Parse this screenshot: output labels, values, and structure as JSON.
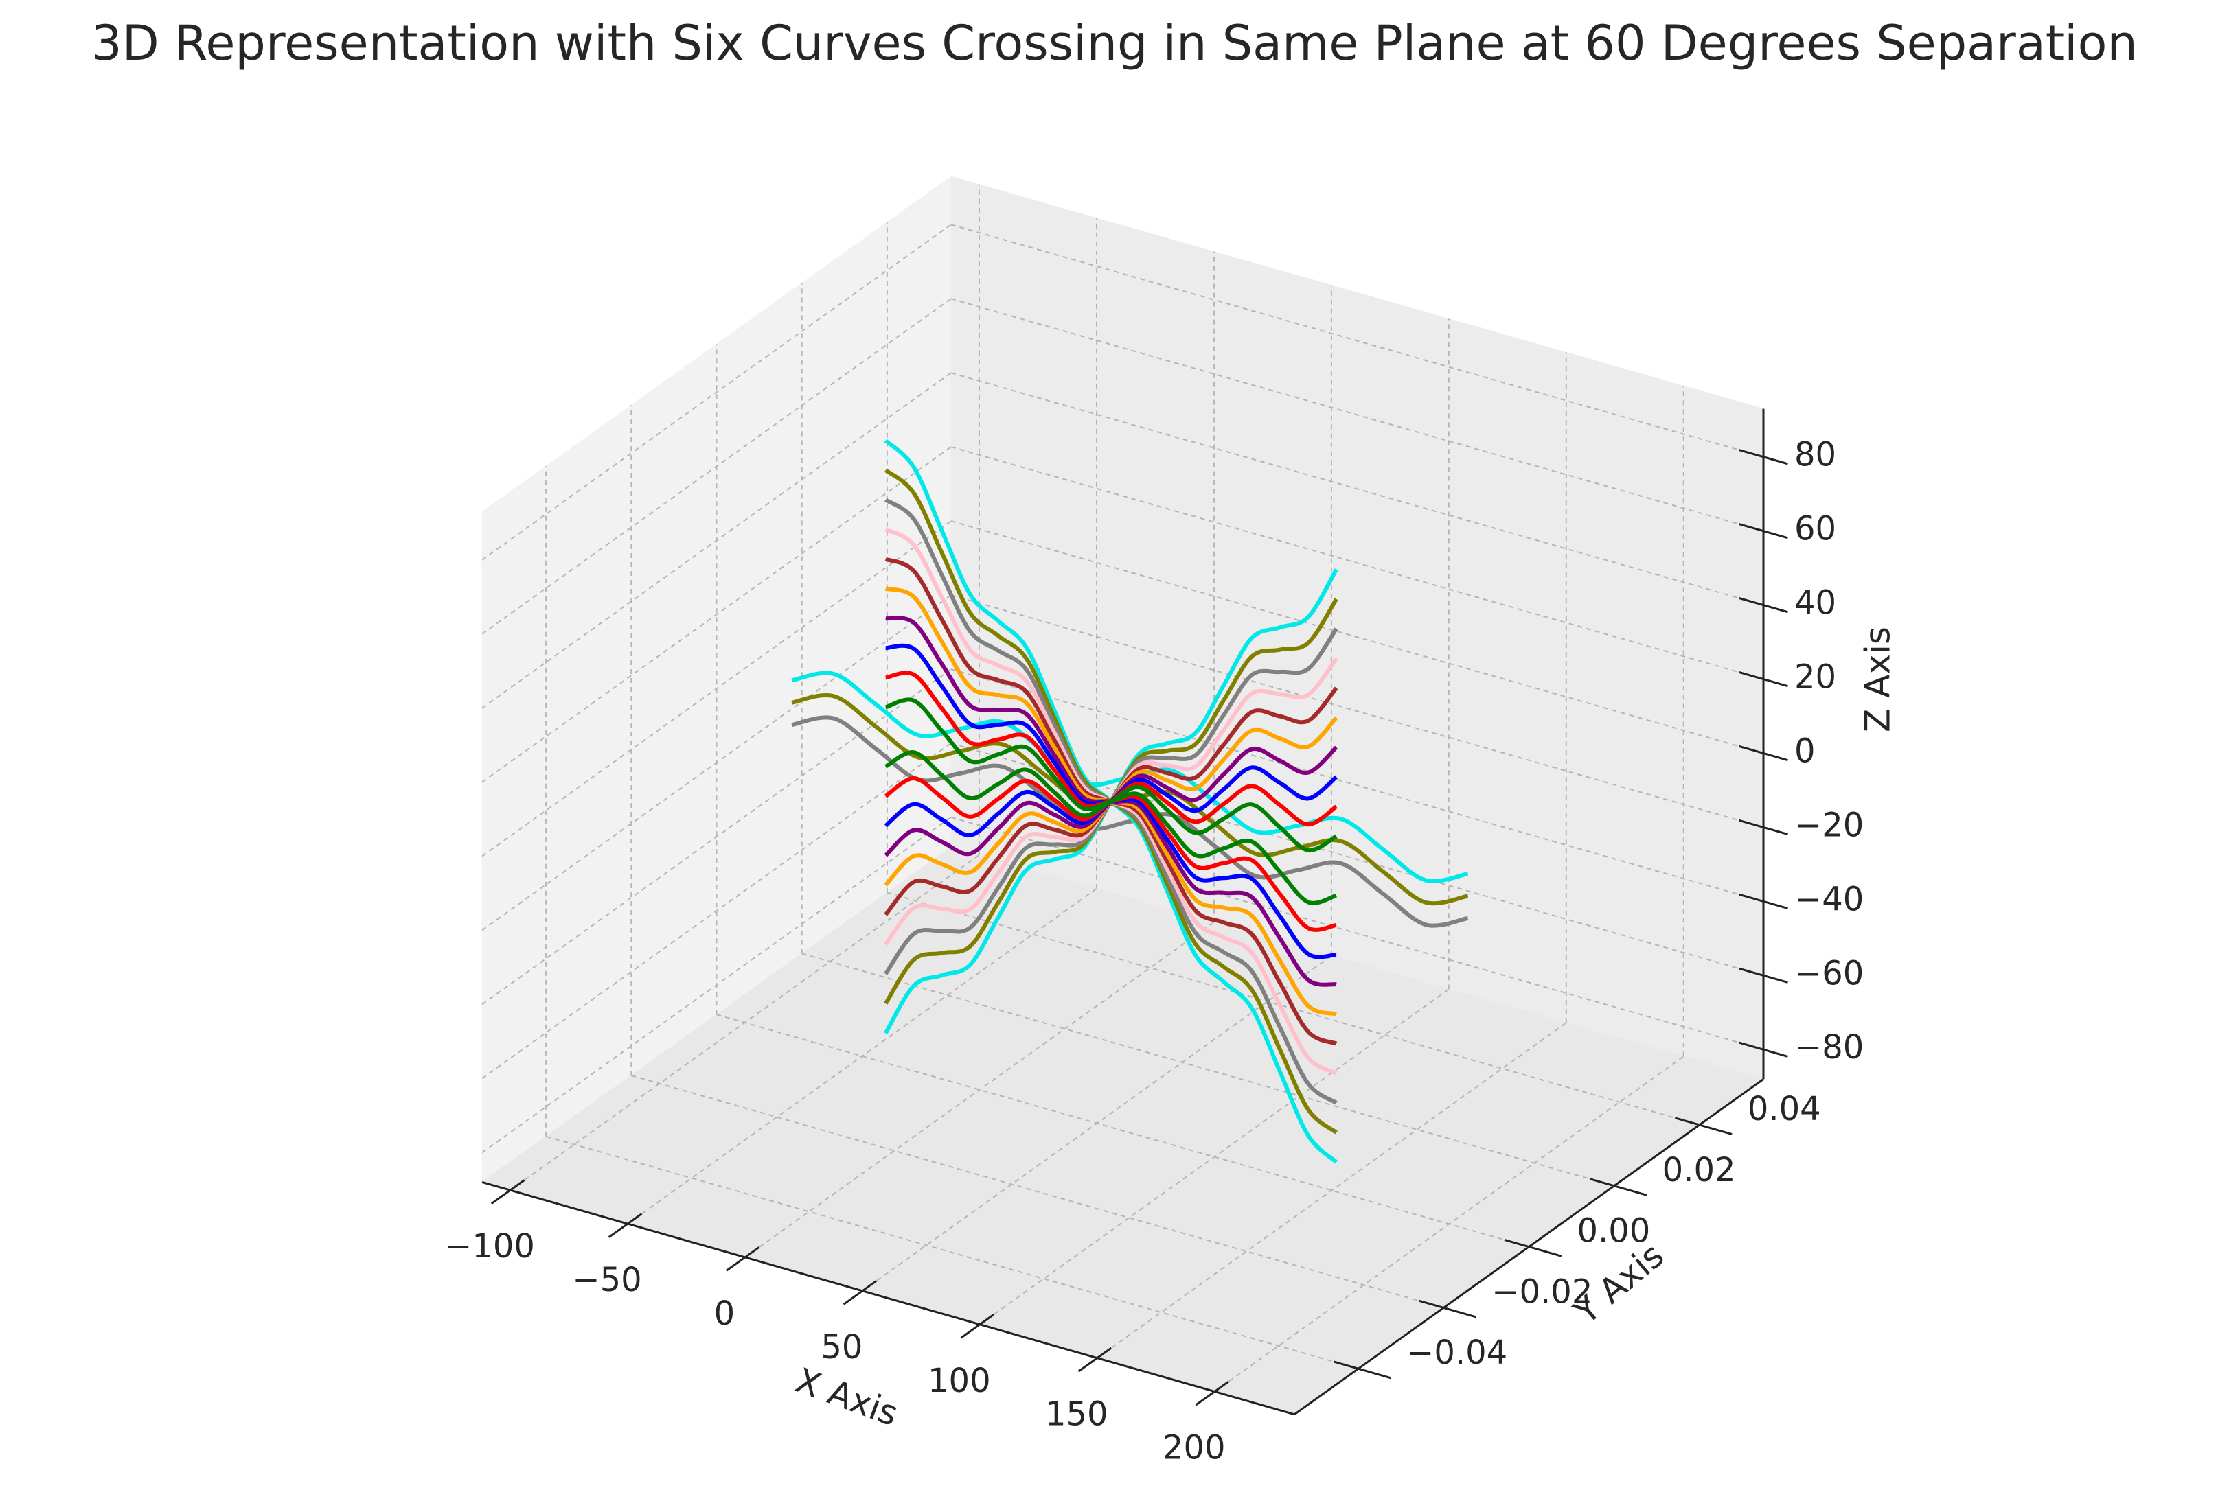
{
  "chart_data": {
    "type": "line3d",
    "title": "3D Representation with Six Curves Crossing in Same Plane at 60 Degrees Separation",
    "xlabel": "X Axis",
    "ylabel": "Y Axis",
    "zlabel": "Z Axis",
    "xlim": [
      -112,
      234
    ],
    "ylim": [
      -0.055,
      0.055
    ],
    "zlim": [
      -88,
      93
    ],
    "xticks": [
      {
        "value": -100,
        "label": "−100"
      },
      {
        "value": -50,
        "label": "−50"
      },
      0,
      50,
      100,
      150,
      200
    ],
    "yticks": [
      {
        "value": -0.04,
        "label": "−0.04"
      },
      {
        "value": -0.02,
        "label": "−0.02"
      },
      {
        "value": 0,
        "label": "0.00"
      },
      {
        "value": 0.02,
        "label": "0.02"
      },
      {
        "value": 0.04,
        "label": "0.04"
      }
    ],
    "zticks": [
      {
        "value": -80,
        "label": "−80"
      },
      {
        "value": -60,
        "label": "−60"
      },
      {
        "value": -40,
        "label": "−40"
      },
      {
        "value": -20,
        "label": "−20"
      },
      0,
      20,
      40,
      60,
      80
    ],
    "grid": true,
    "series": [
      {
        "color": "#00e8e8",
        "y": 0,
        "x": [
          -80,
          -62,
          -44,
          -26,
          -8,
          10,
          28,
          46,
          64,
          82,
          100,
          118,
          136,
          154,
          172,
          190,
          208
        ],
        "values": [
          8,
          13,
          8,
          3,
          8,
          13,
          8,
          3,
          8,
          13,
          8,
          3,
          8,
          13,
          8,
          3,
          8
        ]
      },
      {
        "color": "#808000",
        "y": 0,
        "x": [
          -80,
          -62,
          -44,
          -26,
          -8,
          10,
          28,
          46,
          64,
          82,
          100,
          118,
          136,
          154,
          172,
          190,
          208
        ],
        "values": [
          2,
          7,
          2,
          -3,
          2,
          7,
          2,
          -3,
          2,
          7,
          2,
          -3,
          2,
          7,
          2,
          -3,
          2
        ]
      },
      {
        "color": "#808080",
        "y": 0,
        "x": [
          -80,
          -62,
          -44,
          -26,
          -8,
          10,
          28,
          46,
          64,
          82,
          100,
          118,
          136,
          154,
          172,
          190,
          208
        ],
        "values": [
          -4,
          1,
          -4,
          -9,
          -4,
          1,
          -4,
          -9,
          -4,
          1,
          -4,
          -9,
          -4,
          1,
          -4,
          -9,
          -4
        ]
      },
      {
        "color": "#00e8e8",
        "y": 0,
        "x": [
          -40,
          -28,
          -16,
          -4,
          8,
          20,
          32,
          44,
          56,
          68,
          80,
          92,
          104,
          116,
          128,
          140,
          152
        ],
        "values": [
          80,
          75,
          60,
          45,
          40,
          35,
          20,
          5,
          0,
          -5,
          -20,
          -35,
          -40,
          -45,
          -60,
          -75,
          -80
        ]
      },
      {
        "color": "#00e8e8",
        "y": 0,
        "x": [
          -40,
          -28,
          -16,
          -4,
          8,
          20,
          32,
          44,
          56,
          68,
          80,
          92,
          104,
          116,
          128,
          140,
          152
        ],
        "values": [
          -80,
          -65,
          -60,
          -55,
          -40,
          -25,
          -20,
          -15,
          0,
          15,
          20,
          25,
          40,
          55,
          60,
          65,
          80
        ]
      },
      {
        "color": "#808000",
        "y": 0,
        "x": [
          -40,
          -28,
          -16,
          -4,
          8,
          20,
          32,
          44,
          56,
          68,
          80,
          92,
          104,
          116,
          128,
          140,
          152
        ],
        "values": [
          72,
          68,
          54,
          40,
          36,
          32,
          18,
          4,
          0,
          -4,
          -18,
          -32,
          -36,
          -40,
          -54,
          -68,
          -72
        ]
      },
      {
        "color": "#808000",
        "y": 0,
        "x": [
          -40,
          -28,
          -16,
          -4,
          8,
          20,
          32,
          44,
          56,
          68,
          80,
          92,
          104,
          116,
          128,
          140,
          152
        ],
        "values": [
          -72,
          -58,
          -54,
          -50,
          -36,
          -22,
          -18,
          -14,
          0,
          14,
          18,
          22,
          36,
          50,
          54,
          58,
          72
        ]
      },
      {
        "color": "#808080",
        "y": 0,
        "x": [
          -40,
          -28,
          -16,
          -4,
          8,
          20,
          32,
          44,
          56,
          68,
          80,
          92,
          104,
          116,
          128,
          140,
          152
        ],
        "values": [
          64,
          61,
          48,
          35,
          32,
          29,
          16,
          3,
          0,
          -3,
          -16,
          -29,
          -32,
          -35,
          -48,
          -61,
          -64
        ]
      },
      {
        "color": "#808080",
        "y": 0,
        "x": [
          -40,
          -28,
          -16,
          -4,
          8,
          20,
          32,
          44,
          56,
          68,
          80,
          92,
          104,
          116,
          128,
          140,
          152
        ],
        "values": [
          -64,
          -51,
          -48,
          -45,
          -32,
          -19,
          -16,
          -13,
          0,
          13,
          16,
          19,
          32,
          45,
          48,
          51,
          64
        ]
      },
      {
        "color": "#ffc0cb",
        "y": 0,
        "x": [
          -40,
          -28,
          -16,
          -4,
          8,
          20,
          32,
          44,
          56,
          68,
          80,
          92,
          104,
          116,
          128,
          140,
          152
        ],
        "values": [
          56,
          54,
          42,
          30,
          28,
          26,
          14,
          2,
          0,
          -2,
          -14,
          -26,
          -28,
          -30,
          -42,
          -54,
          -56
        ]
      },
      {
        "color": "#ffc0cb",
        "y": 0,
        "x": [
          -40,
          -28,
          -16,
          -4,
          8,
          20,
          32,
          44,
          56,
          68,
          80,
          92,
          104,
          116,
          128,
          140,
          152
        ],
        "values": [
          -56,
          -44,
          -42,
          -40,
          -28,
          -16,
          -14,
          -12,
          0,
          12,
          14,
          16,
          28,
          40,
          42,
          44,
          56
        ]
      },
      {
        "color": "#a52a2a",
        "y": 0,
        "x": [
          -40,
          -28,
          -16,
          -4,
          8,
          20,
          32,
          44,
          56,
          68,
          80,
          92,
          104,
          116,
          128,
          140,
          152
        ],
        "values": [
          48,
          47,
          36,
          25,
          24,
          23,
          12,
          1,
          0,
          -1,
          -12,
          -23,
          -24,
          -25,
          -36,
          -47,
          -48
        ]
      },
      {
        "color": "#a52a2a",
        "y": 0,
        "x": [
          -40,
          -28,
          -16,
          -4,
          8,
          20,
          32,
          44,
          56,
          68,
          80,
          92,
          104,
          116,
          128,
          140,
          152
        ],
        "values": [
          -48,
          -37,
          -36,
          -35,
          -24,
          -13,
          -12,
          -11,
          0,
          11,
          12,
          13,
          24,
          35,
          36,
          37,
          48
        ]
      },
      {
        "color": "#ffa500",
        "y": 0,
        "x": [
          -40,
          -28,
          -16,
          -4,
          8,
          20,
          32,
          44,
          56,
          68,
          80,
          92,
          104,
          116,
          128,
          140,
          152
        ],
        "values": [
          40,
          40,
          30,
          20,
          20,
          20,
          10,
          0,
          0,
          0,
          -10,
          -20,
          -20,
          -20,
          -30,
          -40,
          -40
        ]
      },
      {
        "color": "#ffa500",
        "y": 0,
        "x": [
          -40,
          -28,
          -16,
          -4,
          8,
          20,
          32,
          44,
          56,
          68,
          80,
          92,
          104,
          116,
          128,
          140,
          152
        ],
        "values": [
          -40,
          -30,
          -30,
          -30,
          -20,
          -10,
          -10,
          -10,
          0,
          10,
          10,
          10,
          20,
          30,
          30,
          30,
          40
        ]
      },
      {
        "color": "#800080",
        "y": 0,
        "x": [
          -40,
          -28,
          -16,
          -4,
          8,
          20,
          32,
          44,
          56,
          68,
          80,
          92,
          104,
          116,
          128,
          140,
          152
        ],
        "values": [
          32,
          33,
          24,
          15,
          16,
          17,
          8,
          -1,
          0,
          1,
          -8,
          -17,
          -16,
          -15,
          -24,
          -33,
          -32
        ]
      },
      {
        "color": "#800080",
        "y": 0,
        "x": [
          -40,
          -28,
          -16,
          -4,
          8,
          20,
          32,
          44,
          56,
          68,
          80,
          92,
          104,
          116,
          128,
          140,
          152
        ],
        "values": [
          -32,
          -23,
          -24,
          -25,
          -16,
          -7,
          -8,
          -9,
          0,
          9,
          8,
          7,
          16,
          25,
          24,
          23,
          32
        ]
      },
      {
        "color": "#0000ff",
        "y": 0,
        "x": [
          -40,
          -28,
          -16,
          -4,
          8,
          20,
          32,
          44,
          56,
          68,
          80,
          92,
          104,
          116,
          128,
          140,
          152
        ],
        "values": [
          24,
          26,
          18,
          10,
          12,
          14,
          6,
          -2,
          0,
          2,
          -6,
          -14,
          -12,
          -10,
          -18,
          -26,
          -24
        ]
      },
      {
        "color": "#0000ff",
        "y": 0,
        "x": [
          -40,
          -28,
          -16,
          -4,
          8,
          20,
          32,
          44,
          56,
          68,
          80,
          92,
          104,
          116,
          128,
          140,
          152
        ],
        "values": [
          -24,
          -16,
          -18,
          -20,
          -12,
          -4,
          -6,
          -8,
          0,
          8,
          6,
          4,
          12,
          20,
          18,
          16,
          24
        ]
      },
      {
        "color": "#ff0000",
        "y": 0,
        "x": [
          -40,
          -28,
          -16,
          -4,
          8,
          20,
          32,
          44,
          56,
          68,
          80,
          92,
          104,
          116,
          128,
          140,
          152
        ],
        "values": [
          16,
          19,
          12,
          5,
          8,
          11,
          4,
          -3,
          0,
          3,
          -4,
          -11,
          -8,
          -5,
          -12,
          -19,
          -16
        ]
      },
      {
        "color": "#ff0000",
        "y": 0,
        "x": [
          -40,
          -28,
          -16,
          -4,
          8,
          20,
          32,
          44,
          56,
          68,
          80,
          92,
          104,
          116,
          128,
          140,
          152
        ],
        "values": [
          -16,
          -9,
          -12,
          -15,
          -8,
          -1,
          -4,
          -7,
          0,
          7,
          4,
          1,
          8,
          15,
          12,
          9,
          16
        ]
      },
      {
        "color": "#008000",
        "y": 0,
        "x": [
          -40,
          -28,
          -16,
          -4,
          8,
          20,
          32,
          44,
          56,
          68,
          80,
          92,
          104,
          116,
          128,
          140,
          152
        ],
        "values": [
          8,
          12,
          6,
          0,
          4,
          8,
          2,
          -4,
          0,
          4,
          -2,
          -8,
          -4,
          0,
          -6,
          -12,
          -8
        ]
      },
      {
        "color": "#008000",
        "y": 0,
        "x": [
          -40,
          -28,
          -16,
          -4,
          8,
          20,
          32,
          44,
          56,
          68,
          80,
          92,
          104,
          116,
          128,
          140,
          152
        ],
        "values": [
          -8,
          -2,
          -6,
          -10,
          -4,
          2,
          -2,
          -6,
          0,
          6,
          2,
          -2,
          4,
          10,
          6,
          2,
          8
        ]
      }
    ]
  }
}
